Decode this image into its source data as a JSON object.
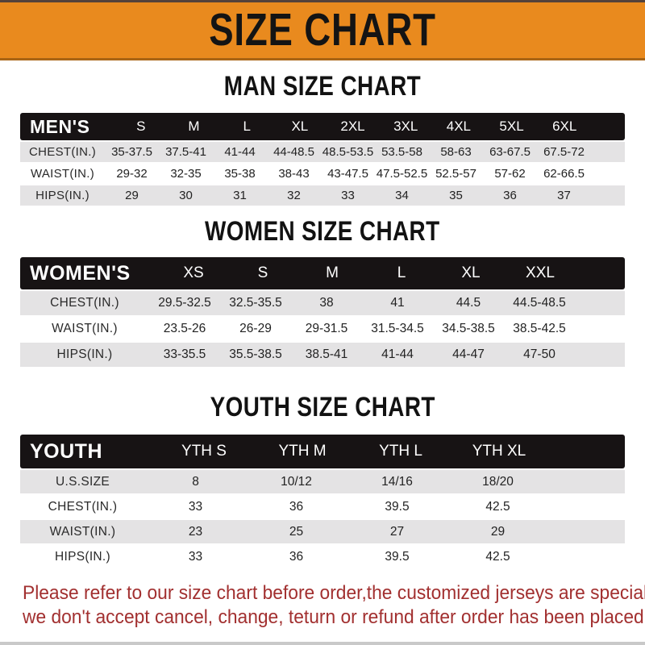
{
  "colors": {
    "banner_orange": "#E98A1E",
    "banner_border": "#A96414",
    "band_black": "#171314",
    "row_gray": "#E4E3E4",
    "footer_red": "#A23030",
    "top_strip": "#55423A"
  },
  "banner": {
    "title": "SIZE CHART"
  },
  "sections": [
    {
      "heading": "MAN SIZE CHART",
      "band_label": "MEN'S",
      "columns": [
        "S",
        "M",
        "L",
        "XL",
        "2XL",
        "3XL",
        "4XL",
        "5XL",
        "6XL"
      ],
      "rows": [
        {
          "label": "CHEST(IN.)",
          "values": [
            "35-37.5",
            "37.5-41",
            "41-44",
            "44-48.5",
            "48.5-53.5",
            "53.5-58",
            "58-63",
            "63-67.5",
            "67.5-72"
          ]
        },
        {
          "label": "WAIST(IN.)",
          "values": [
            "29-32",
            "32-35",
            "35-38",
            "38-43",
            "43-47.5",
            "47.5-52.5",
            "52.5-57",
            "57-62",
            "62-66.5"
          ]
        },
        {
          "label": "HIPS(IN.)",
          "values": [
            "29",
            "30",
            "31",
            "32",
            "33",
            "34",
            "35",
            "36",
            "37"
          ]
        }
      ]
    },
    {
      "heading": "WOMEN SIZE CHART",
      "band_label": "WOMEN'S",
      "columns": [
        "XS",
        "S",
        "M",
        "L",
        "XL",
        "XXL"
      ],
      "rows": [
        {
          "label": "CHEST(IN.)",
          "values": [
            "29.5-32.5",
            "32.5-35.5",
            "38",
            "41",
            "44.5",
            "44.5-48.5"
          ]
        },
        {
          "label": "WAIST(IN.)",
          "values": [
            "23.5-26",
            "26-29",
            "29-31.5",
            "31.5-34.5",
            "34.5-38.5",
            "38.5-42.5"
          ]
        },
        {
          "label": "HIPS(IN.)",
          "values": [
            "33-35.5",
            "35.5-38.5",
            "38.5-41",
            "41-44",
            "44-47",
            "47-50"
          ]
        }
      ]
    },
    {
      "heading": "YOUTH SIZE CHART",
      "band_label": "YOUTH",
      "columns": [
        "YTH S",
        "YTH M",
        "YTH L",
        "YTH XL"
      ],
      "rows": [
        {
          "label": "U.S.SIZE",
          "values": [
            "8",
            "10/12",
            "14/16",
            "18/20"
          ]
        },
        {
          "label": "CHEST(IN.)",
          "values": [
            "33",
            "36",
            "39.5",
            "42.5"
          ]
        },
        {
          "label": "WAIST(IN.)",
          "values": [
            "23",
            "25",
            "27",
            "29"
          ]
        },
        {
          "label": "HIPS(IN.)",
          "values": [
            "33",
            "36",
            "39.5",
            "42.5"
          ]
        }
      ]
    }
  ],
  "footer": {
    "line1": "Please refer to our size chart before order,the customized jerseys are special products,",
    "line2": "we don't accept cancel, change, teturn or refund after order has been placed!"
  }
}
